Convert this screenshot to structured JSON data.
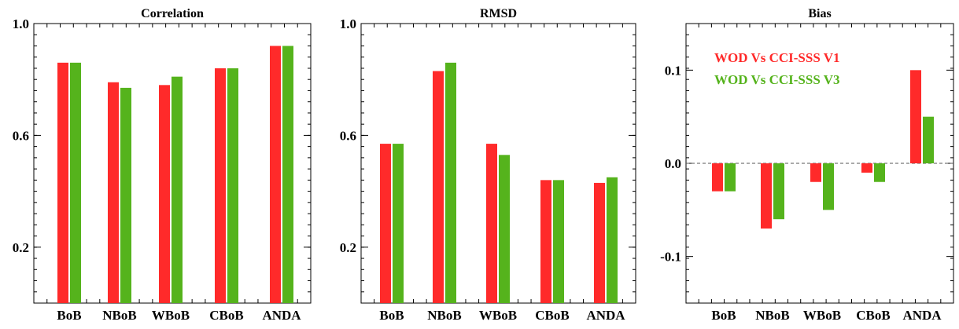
{
  "chart_data": [
    {
      "type": "bar",
      "title": "Correlation",
      "categories": [
        "BoB",
        "NBoB",
        "WBoB",
        "CBoB",
        "ANDA"
      ],
      "series": [
        {
          "name": "WOD Vs CCI-SSS V1",
          "color": "#ff2a2a",
          "values": [
            0.86,
            0.79,
            0.78,
            0.84,
            0.92
          ]
        },
        {
          "name": "WOD Vs CCI-SSS V3",
          "color": "#55b31c",
          "values": [
            0.86,
            0.77,
            0.81,
            0.84,
            0.92
          ]
        }
      ],
      "ylim": [
        0.0,
        1.0
      ],
      "yticks": [
        0.2,
        0.6,
        1.0
      ],
      "ytick_labels": [
        "0.2",
        "0.6",
        "1.0"
      ],
      "zero_line": false
    },
    {
      "type": "bar",
      "title": "RMSD",
      "categories": [
        "BoB",
        "NBoB",
        "WBoB",
        "CBoB",
        "ANDA"
      ],
      "series": [
        {
          "name": "WOD Vs CCI-SSS V1",
          "color": "#ff2a2a",
          "values": [
            0.57,
            0.83,
            0.57,
            0.44,
            0.43
          ]
        },
        {
          "name": "WOD Vs CCI-SSS V3",
          "color": "#55b31c",
          "values": [
            0.57,
            0.86,
            0.53,
            0.44,
            0.45
          ]
        }
      ],
      "ylim": [
        0.0,
        1.0
      ],
      "yticks": [
        0.2,
        0.6,
        1.0
      ],
      "ytick_labels": [
        "0.2",
        "0.6",
        "1.0"
      ],
      "zero_line": false
    },
    {
      "type": "bar",
      "title": "Bias",
      "categories": [
        "BoB",
        "NBoB",
        "WBoB",
        "CBoB",
        "ANDA"
      ],
      "series": [
        {
          "name": "WOD Vs CCI-SSS V1",
          "color": "#ff2a2a",
          "values": [
            -0.03,
            -0.07,
            -0.02,
            -0.01,
            0.1
          ]
        },
        {
          "name": "WOD Vs CCI-SSS V3",
          "color": "#55b31c",
          "values": [
            -0.03,
            -0.06,
            -0.05,
            -0.02,
            0.05
          ]
        }
      ],
      "ylim": [
        -0.15,
        0.15
      ],
      "yticks": [
        -0.1,
        0.0,
        0.1
      ],
      "ytick_labels": [
        "-0.1",
        "0.0",
        "0.1"
      ],
      "zero_line": true,
      "legend": {
        "placement": "top-left",
        "entries": [
          {
            "label": "WOD Vs CCI-SSS V1",
            "color": "#ff2a2a"
          },
          {
            "label": "WOD Vs CCI-SSS V3",
            "color": "#55b31c"
          }
        ]
      }
    }
  ]
}
